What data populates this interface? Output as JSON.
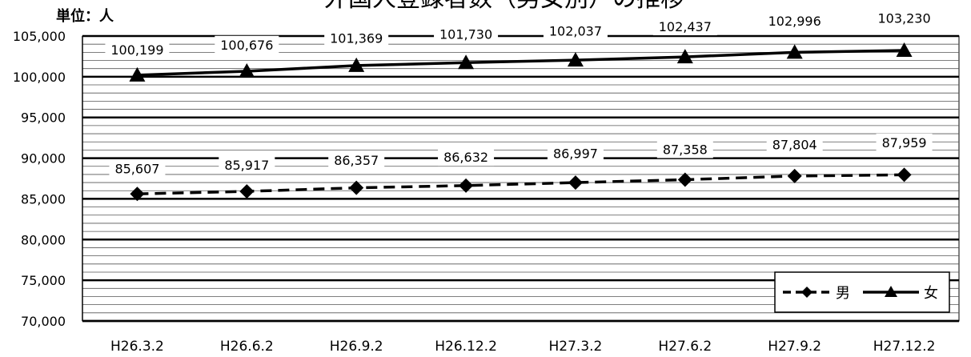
{
  "chart_data": {
    "type": "line",
    "title": "外国人登録者数（男女別）の推移",
    "unit_label": "単位：人",
    "categories": [
      "H26.3.2",
      "H26.6.2",
      "H26.9.2",
      "H26.12.2",
      "H27.3.2",
      "H27.6.2",
      "H27.9.2",
      "H27.12.2"
    ],
    "ylim": [
      70000,
      105000
    ],
    "yticks": [
      "70,000",
      "75,000",
      "80,000",
      "85,000",
      "90,000",
      "95,000",
      "100,000",
      "105,000"
    ],
    "series": [
      {
        "name": "男",
        "values": [
          85607,
          85917,
          86357,
          86632,
          86997,
          87358,
          87804,
          87959
        ],
        "labels": [
          "85,607",
          "85,917",
          "86,357",
          "86,632",
          "86,997",
          "87,358",
          "87,804",
          "87,959"
        ],
        "line_style": "dashed",
        "marker": "diamond",
        "color": "#000000"
      },
      {
        "name": "女",
        "values": [
          100199,
          100676,
          101369,
          101730,
          102037,
          102437,
          102996,
          103230
        ],
        "labels": [
          "100,199",
          "100,676",
          "101,369",
          "101,730",
          "102,037",
          "102,437",
          "102,996",
          "103,230"
        ],
        "line_style": "solid",
        "marker": "triangle",
        "color": "#000000"
      }
    ],
    "grid": true,
    "legend_position": "bottom-right"
  }
}
